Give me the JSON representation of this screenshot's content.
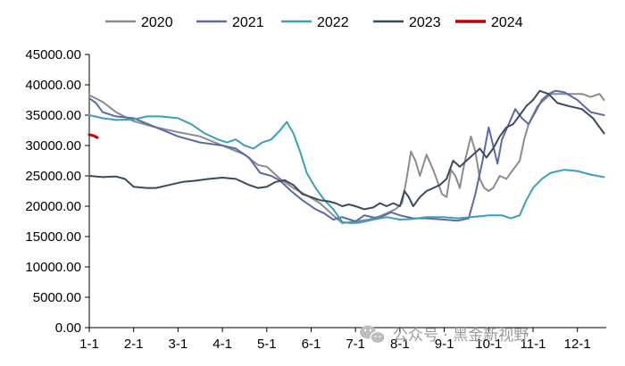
{
  "chart_data": {
    "type": "line",
    "title": "",
    "xlabel": "",
    "ylabel": "",
    "ylim": [
      0,
      45000
    ],
    "y_ticks": [
      "0.00",
      "5000.00",
      "10000.00",
      "15000.00",
      "20000.00",
      "25000.00",
      "30000.00",
      "35000.00",
      "40000.00",
      "45000.00"
    ],
    "x_ticks": [
      "1-1",
      "2-1",
      "3-1",
      "4-1",
      "5-1",
      "6-1",
      "7-1",
      "8-1",
      "9-1",
      "10-1",
      "11-1",
      "12-1"
    ],
    "x_domain_months": [
      0,
      11.65
    ],
    "legend_position": "top",
    "grid": false,
    "series": [
      {
        "name": "2020",
        "color": "#8c8c8c",
        "points": [
          [
            0,
            38300
          ],
          [
            0.3,
            37200
          ],
          [
            0.6,
            35500
          ],
          [
            1,
            34000
          ],
          [
            1.5,
            33000
          ],
          [
            2,
            32200
          ],
          [
            2.5,
            31500
          ],
          [
            3,
            30000
          ],
          [
            3.5,
            28500
          ],
          [
            3.8,
            26800
          ],
          [
            4,
            26500
          ],
          [
            4.3,
            24500
          ],
          [
            4.6,
            23000
          ],
          [
            4.9,
            21800
          ],
          [
            5.2,
            20500
          ],
          [
            5.5,
            18500
          ],
          [
            5.7,
            17200
          ],
          [
            6,
            17500
          ],
          [
            6.3,
            17800
          ],
          [
            6.6,
            18500
          ],
          [
            6.9,
            19500
          ],
          [
            7.05,
            20500
          ],
          [
            7.15,
            24500
          ],
          [
            7.25,
            29000
          ],
          [
            7.35,
            27500
          ],
          [
            7.45,
            25000
          ],
          [
            7.6,
            28500
          ],
          [
            7.75,
            26000
          ],
          [
            7.85,
            24000
          ],
          [
            7.95,
            22000
          ],
          [
            8.05,
            21500
          ],
          [
            8.15,
            26000
          ],
          [
            8.25,
            25000
          ],
          [
            8.35,
            23000
          ],
          [
            8.45,
            27000
          ],
          [
            8.6,
            31500
          ],
          [
            8.7,
            29000
          ],
          [
            8.8,
            24500
          ],
          [
            8.9,
            23000
          ],
          [
            9,
            22500
          ],
          [
            9.1,
            23000
          ],
          [
            9.25,
            25000
          ],
          [
            9.4,
            24500
          ],
          [
            9.55,
            26000
          ],
          [
            9.7,
            27500
          ],
          [
            9.8,
            31000
          ],
          [
            9.9,
            33500
          ],
          [
            10,
            35000
          ],
          [
            10.1,
            36500
          ],
          [
            10.25,
            37500
          ],
          [
            10.4,
            38500
          ],
          [
            10.6,
            38500
          ],
          [
            10.9,
            38500
          ],
          [
            11.1,
            38500
          ],
          [
            11.3,
            38000
          ],
          [
            11.5,
            38500
          ],
          [
            11.6,
            37500
          ]
        ]
      },
      {
        "name": "2021",
        "color": "#5b6aa8",
        "points": [
          [
            0,
            37800
          ],
          [
            0.15,
            37000
          ],
          [
            0.3,
            35500
          ],
          [
            0.6,
            34800
          ],
          [
            1,
            34500
          ],
          [
            1.5,
            33000
          ],
          [
            2,
            31500
          ],
          [
            2.5,
            30500
          ],
          [
            3,
            30000
          ],
          [
            3.3,
            29500
          ],
          [
            3.6,
            28000
          ],
          [
            3.85,
            25500
          ],
          [
            4.1,
            25000
          ],
          [
            4.3,
            24200
          ],
          [
            4.55,
            22500
          ],
          [
            4.8,
            21000
          ],
          [
            5.1,
            19500
          ],
          [
            5.3,
            18800
          ],
          [
            5.5,
            17800
          ],
          [
            5.7,
            18200
          ],
          [
            6,
            17500
          ],
          [
            6.2,
            18500
          ],
          [
            6.5,
            18000
          ],
          [
            6.8,
            19000
          ],
          [
            7,
            18500
          ],
          [
            7.3,
            18000
          ],
          [
            7.6,
            18000
          ],
          [
            8,
            17800
          ],
          [
            8.3,
            17600
          ],
          [
            8.55,
            18000
          ],
          [
            8.7,
            22000
          ],
          [
            8.85,
            27000
          ],
          [
            9,
            33000
          ],
          [
            9.1,
            30000
          ],
          [
            9.2,
            27000
          ],
          [
            9.3,
            31000
          ],
          [
            9.45,
            33500
          ],
          [
            9.6,
            36000
          ],
          [
            9.75,
            34500
          ],
          [
            9.9,
            33500
          ],
          [
            10.05,
            35500
          ],
          [
            10.2,
            37500
          ],
          [
            10.35,
            38500
          ],
          [
            10.5,
            39000
          ],
          [
            10.7,
            38800
          ],
          [
            11,
            37500
          ],
          [
            11.3,
            35500
          ],
          [
            11.6,
            35000
          ]
        ]
      },
      {
        "name": "2022",
        "color": "#3aa0b8",
        "points": [
          [
            0,
            35000
          ],
          [
            0.3,
            34500
          ],
          [
            0.6,
            34200
          ],
          [
            1,
            34300
          ],
          [
            1.3,
            34800
          ],
          [
            1.6,
            34800
          ],
          [
            2,
            34500
          ],
          [
            2.3,
            33500
          ],
          [
            2.6,
            32000
          ],
          [
            2.9,
            31000
          ],
          [
            3.1,
            30500
          ],
          [
            3.3,
            31000
          ],
          [
            3.5,
            30000
          ],
          [
            3.7,
            29500
          ],
          [
            3.9,
            30500
          ],
          [
            4.1,
            31000
          ],
          [
            4.3,
            32500
          ],
          [
            4.45,
            33900
          ],
          [
            4.6,
            32000
          ],
          [
            4.75,
            29000
          ],
          [
            4.9,
            25500
          ],
          [
            5.1,
            23000
          ],
          [
            5.3,
            21000
          ],
          [
            5.5,
            19500
          ],
          [
            5.7,
            17400
          ],
          [
            5.9,
            17200
          ],
          [
            6.1,
            17300
          ],
          [
            6.4,
            17800
          ],
          [
            6.7,
            18200
          ],
          [
            7,
            17800
          ],
          [
            7.3,
            17900
          ],
          [
            7.6,
            18200
          ],
          [
            8,
            18200
          ],
          [
            8.3,
            18000
          ],
          [
            8.6,
            18200
          ],
          [
            9,
            18500
          ],
          [
            9.3,
            18500
          ],
          [
            9.5,
            18000
          ],
          [
            9.7,
            18500
          ],
          [
            9.85,
            21000
          ],
          [
            10,
            23000
          ],
          [
            10.2,
            24500
          ],
          [
            10.4,
            25500
          ],
          [
            10.7,
            26000
          ],
          [
            11,
            25800
          ],
          [
            11.3,
            25200
          ],
          [
            11.6,
            24800
          ]
        ]
      },
      {
        "name": "2023",
        "color": "#3b4a5e",
        "points": [
          [
            0,
            25000
          ],
          [
            0.3,
            24800
          ],
          [
            0.6,
            24900
          ],
          [
            0.8,
            24500
          ],
          [
            1,
            23200
          ],
          [
            1.3,
            23000
          ],
          [
            1.5,
            23000
          ],
          [
            1.8,
            23500
          ],
          [
            2.1,
            24000
          ],
          [
            2.4,
            24200
          ],
          [
            2.7,
            24500
          ],
          [
            3,
            24700
          ],
          [
            3.3,
            24500
          ],
          [
            3.6,
            23500
          ],
          [
            3.8,
            23000
          ],
          [
            4,
            23200
          ],
          [
            4.2,
            24000
          ],
          [
            4.4,
            24300
          ],
          [
            4.6,
            23500
          ],
          [
            4.8,
            22000
          ],
          [
            5,
            21500
          ],
          [
            5.2,
            21000
          ],
          [
            5.4,
            20800
          ],
          [
            5.55,
            20500
          ],
          [
            5.7,
            20000
          ],
          [
            5.85,
            20300
          ],
          [
            6,
            20000
          ],
          [
            6.2,
            19500
          ],
          [
            6.4,
            19800
          ],
          [
            6.55,
            20500
          ],
          [
            6.7,
            20000
          ],
          [
            6.85,
            20500
          ],
          [
            7,
            20000
          ],
          [
            7.1,
            22500
          ],
          [
            7.2,
            21500
          ],
          [
            7.3,
            20000
          ],
          [
            7.45,
            21500
          ],
          [
            7.6,
            22500
          ],
          [
            7.75,
            23000
          ],
          [
            7.9,
            23500
          ],
          [
            8.05,
            24500
          ],
          [
            8.2,
            27500
          ],
          [
            8.35,
            26500
          ],
          [
            8.5,
            27500
          ],
          [
            8.65,
            28500
          ],
          [
            8.8,
            29500
          ],
          [
            8.95,
            28000
          ],
          [
            9.1,
            29500
          ],
          [
            9.25,
            31500
          ],
          [
            9.4,
            33000
          ],
          [
            9.55,
            33500
          ],
          [
            9.7,
            35000
          ],
          [
            9.85,
            36500
          ],
          [
            10,
            37500
          ],
          [
            10.15,
            39000
          ],
          [
            10.35,
            38500
          ],
          [
            10.55,
            37000
          ],
          [
            10.8,
            36500
          ],
          [
            11.1,
            36000
          ],
          [
            11.35,
            34500
          ],
          [
            11.6,
            32000
          ]
        ]
      },
      {
        "name": "2024",
        "color": "#c00000",
        "points": [
          [
            0,
            31800
          ],
          [
            0.1,
            31600
          ],
          [
            0.18,
            31300
          ]
        ]
      }
    ]
  },
  "watermark": {
    "icon": "wechat-icon",
    "text": "公众号 · 黑金新视野"
  }
}
